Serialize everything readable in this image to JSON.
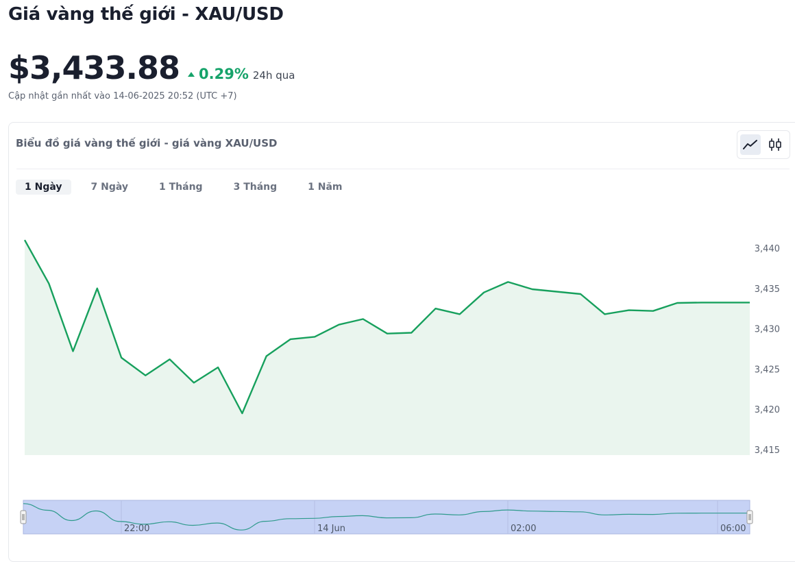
{
  "page": {
    "title": "Giá vàng thế giới - XAU/USD",
    "price": "$3,433.88",
    "change": "0.29%",
    "change_period": "24h qua",
    "updated": "Cập nhật gần nhất vào 14-06-2025 20:52 (UTC +7)"
  },
  "chart_card": {
    "title": "Biểu đồ giá vàng thế giới - giá vàng XAU/USD",
    "chart_types": [
      "line-chart-icon",
      "candlestick-icon"
    ],
    "active_chart_type": "line",
    "ranges": [
      "1 Ngày",
      "7 Ngày",
      "1 Tháng",
      "3 Tháng",
      "1 Năm"
    ],
    "active_range": "1 Ngày"
  },
  "colors": {
    "accent_green": "#16a36a",
    "line": "#17a05d",
    "area": "#eaf5ee",
    "navigator_fill": "#c6d2f5",
    "navigator_border": "#a9b6e0",
    "navigator_line": "#2e9a8c"
  },
  "chart_data": {
    "type": "area",
    "ylim": [
      3415,
      3440
    ],
    "yticks": [
      3440,
      3435,
      3430,
      3425,
      3420,
      3415
    ],
    "ytick_labels": [
      "3,440",
      "3,435",
      "3,430",
      "3,425",
      "3,420",
      "3,415"
    ],
    "values": [
      3441.0,
      3435.6,
      3427.2,
      3435.0,
      3426.4,
      3424.2,
      3426.2,
      3423.3,
      3425.2,
      3419.5,
      3426.6,
      3428.7,
      3429.0,
      3430.5,
      3431.2,
      3429.4,
      3429.5,
      3432.5,
      3431.8,
      3434.5,
      3435.8,
      3434.9,
      3434.6,
      3434.3,
      3431.8,
      3432.3,
      3432.2,
      3433.2,
      3433.25,
      3433.25,
      3433.25
    ],
    "grid": false,
    "legend": "none",
    "navigator": {
      "x_labels": [
        "22:00",
        "14 Jun",
        "02:00",
        "06:00"
      ]
    }
  }
}
